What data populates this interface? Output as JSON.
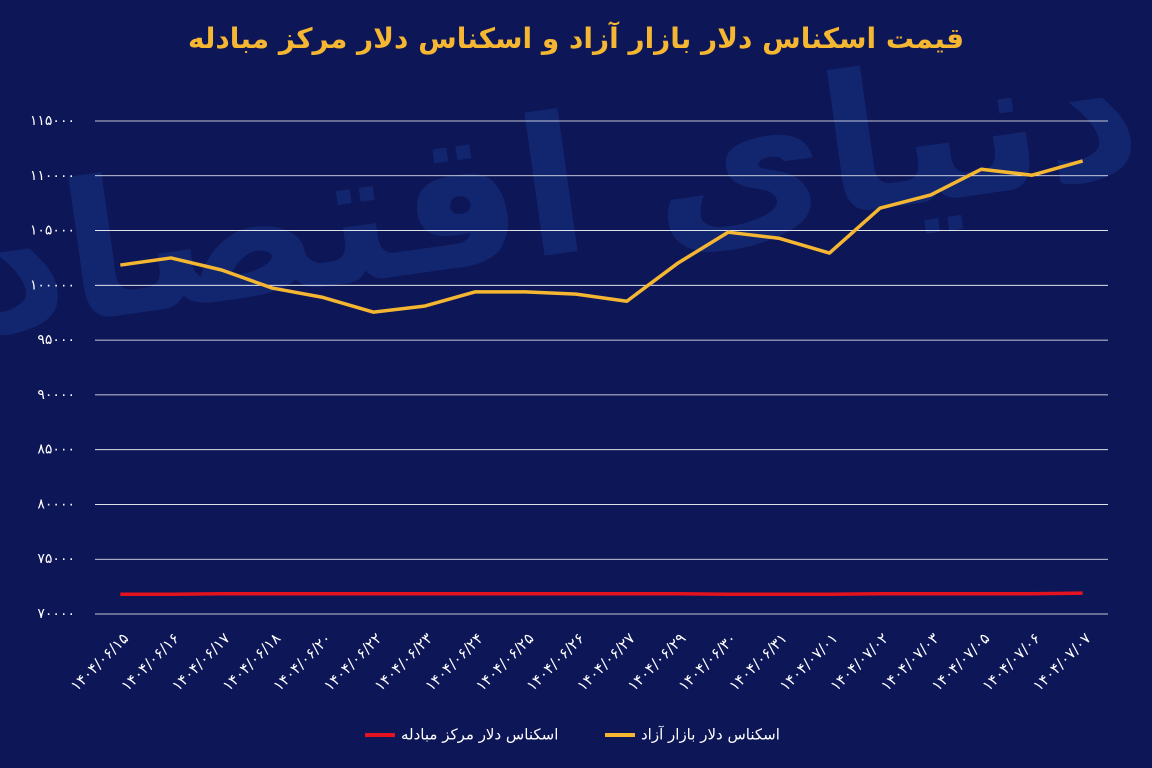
{
  "chart_data": {
    "type": "line",
    "title": "قیمت اسکناس دلار بازار آزاد و اسکناس دلار مرکز مبادله",
    "watermark": "دنیای اقتصاد",
    "categories": [
      "۱۴۰۴/۰۶/۱۵",
      "۱۴۰۴/۰۶/۱۶",
      "۱۴۰۴/۰۶/۱۷",
      "۱۴۰۴/۰۶/۱۸",
      "۱۴۰۴/۰۶/۲۰",
      "۱۴۰۴/۰۶/۲۲",
      "۱۴۰۴/۰۶/۲۳",
      "۱۴۰۴/۰۶/۲۴",
      "۱۴۰۴/۰۶/۲۵",
      "۱۴۰۴/۰۶/۲۶",
      "۱۴۰۴/۰۶/۲۷",
      "۱۴۰۴/۰۶/۲۹",
      "۱۴۰۴/۰۶/۳۰",
      "۱۴۰۴/۰۶/۳۱",
      "۱۴۰۴/۰۷/۰۱",
      "۱۴۰۴/۰۷/۰۲",
      "۱۴۰۴/۰۷/۰۳",
      "۱۴۰۴/۰۷/۰۵",
      "۱۴۰۴/۰۷/۰۶",
      "۱۴۰۴/۰۷/۰۷"
    ],
    "series": [
      {
        "name": "اسکناس دلار مرکز مبادله",
        "color": "#e5121f",
        "values": [
          71800,
          71800,
          71850,
          71850,
          71850,
          71850,
          71850,
          71850,
          71850,
          71850,
          71850,
          71850,
          71800,
          71800,
          71800,
          71850,
          71850,
          71850,
          71850,
          71900
        ]
      },
      {
        "name": "اسکناس دلار بازار آزاد",
        "color": "#f5b632",
        "values": [
          101850,
          102500,
          101400,
          99750,
          98900,
          97550,
          98100,
          99400,
          99400,
          99200,
          98550,
          102000,
          104850,
          104300,
          102950,
          107050,
          108250,
          110600,
          110050,
          111350
        ]
      }
    ],
    "ylim": [
      70000,
      115000
    ],
    "yticks": [
      {
        "value": 70000,
        "label": "۷۰۰۰۰"
      },
      {
        "value": 75000,
        "label": "۷۵۰۰۰"
      },
      {
        "value": 80000,
        "label": "۸۰۰۰۰"
      },
      {
        "value": 85000,
        "label": "۸۵۰۰۰"
      },
      {
        "value": 90000,
        "label": "۹۰۰۰۰"
      },
      {
        "value": 95000,
        "label": "۹۵۰۰۰"
      },
      {
        "value": 100000,
        "label": "۱۰۰۰۰۰"
      },
      {
        "value": 105000,
        "label": "۱۰۵۰۰۰"
      },
      {
        "value": 110000,
        "label": "۱۱۰۰۰۰"
      },
      {
        "value": 115000,
        "label": "۱۱۵۰۰۰"
      }
    ],
    "grid": true
  }
}
